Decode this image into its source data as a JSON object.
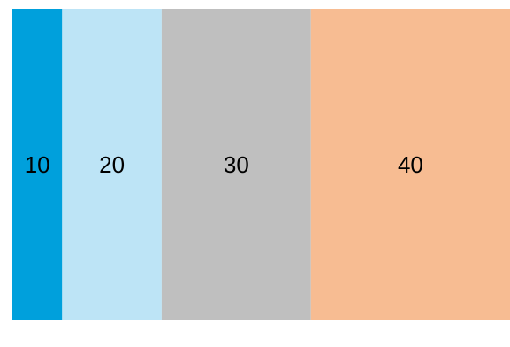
{
  "chart_data": {
    "type": "bar",
    "orientation": "horizontal-stacked-100",
    "values": [
      10,
      20,
      30,
      40
    ],
    "labels": [
      "10",
      "20",
      "30",
      "40"
    ],
    "colors": [
      "#00a0dc",
      "#bde4f6",
      "#bfbfbf",
      "#f7bc92"
    ],
    "label_color": "#000000",
    "title": "",
    "xlabel": "",
    "ylabel": "",
    "legend": "none",
    "grid": false
  }
}
